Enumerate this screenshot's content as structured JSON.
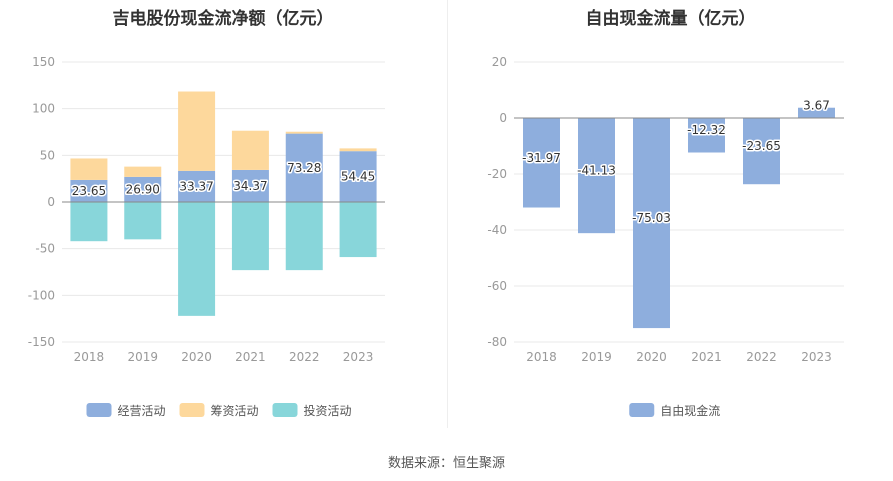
{
  "source": "数据来源：恒生聚源",
  "colors": {
    "operating": "#8eaedd",
    "financing": "#fdd89c",
    "investing": "#88d6da",
    "free_cash_flow": "#8eaedd",
    "grid": "#e8e8e8",
    "axis": "#888888",
    "tick": "#999999"
  },
  "chart_data": [
    {
      "type": "bar",
      "stacked": true,
      "title": "吉电股份现金流净额（亿元）",
      "categories": [
        "2018",
        "2019",
        "2020",
        "2021",
        "2022",
        "2023"
      ],
      "ylim": [
        -150,
        150
      ],
      "yticks": [
        150,
        100,
        50,
        0,
        -50,
        -100,
        -150
      ],
      "ytick_labels": [
        "150",
        "100",
        "50",
        "0",
        "-50",
        "-100",
        "-150"
      ],
      "grid": true,
      "legend": "bottom",
      "series": [
        {
          "name": "经营活动",
          "key": "operating",
          "values": [
            23.65,
            26.9,
            33.37,
            34.37,
            73.28,
            54.45
          ],
          "labels": [
            "23.65",
            "26.90",
            "33.37",
            "34.37",
            "73.28",
            "54.45"
          ]
        },
        {
          "name": "筹资活动",
          "key": "financing",
          "values": [
            23,
            11,
            85,
            42,
            2,
            3
          ]
        },
        {
          "name": "投资活动",
          "key": "investing",
          "values": [
            -42,
            -40,
            -122,
            -73,
            -73,
            -59
          ]
        }
      ]
    },
    {
      "type": "bar",
      "title": "自由现金流量（亿元）",
      "categories": [
        "2018",
        "2019",
        "2020",
        "2021",
        "2022",
        "2023"
      ],
      "ylim": [
        -80,
        20
      ],
      "yticks": [
        20,
        0,
        -20,
        -40,
        -60,
        -80
      ],
      "ytick_labels": [
        "20",
        "0",
        "-20",
        "-40",
        "-60",
        "-80"
      ],
      "grid": true,
      "legend": "bottom",
      "series": [
        {
          "name": "自由现金流",
          "key": "free_cash_flow",
          "values": [
            -31.97,
            -41.13,
            -75.03,
            -12.32,
            -23.65,
            3.67
          ],
          "labels": [
            "-31.97",
            "-41.13",
            "-75.03",
            "-12.32",
            "-23.65",
            "3.67"
          ]
        }
      ]
    }
  ]
}
